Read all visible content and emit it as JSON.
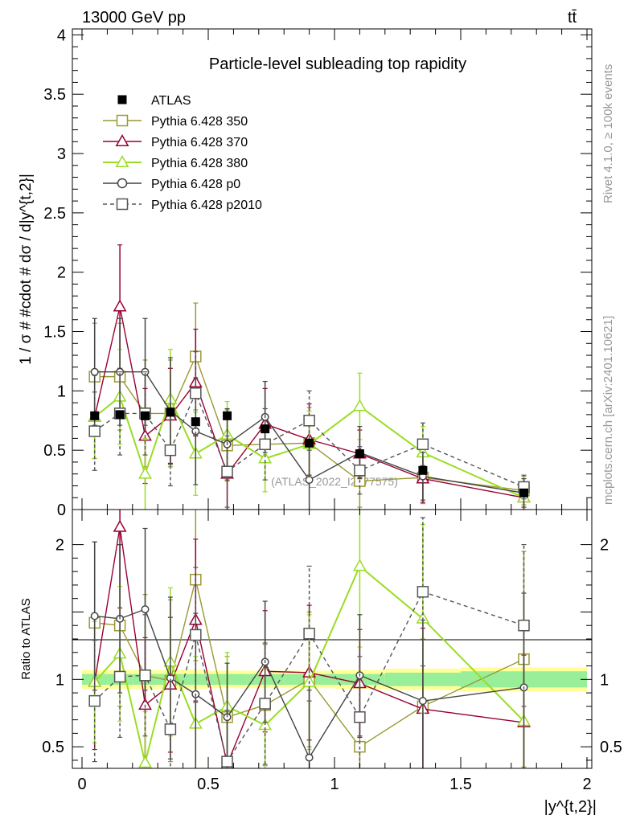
{
  "header": {
    "energy": "13000 GeV pp",
    "process": "tt̄"
  },
  "side_labels": {
    "rivet": "Rivet 4.1.0, ≥ 100k events",
    "mcplots": "mcplots.cern.ch [arXiv:2401.10621]"
  },
  "chart_data": [
    {
      "type": "scatter",
      "panel": "main",
      "title": "Particle-level subleading top rapidity",
      "ylabel": "1 / σ # #cdot # dσ / d|y^{t,2}|",
      "watermark": "(ATLAS_2022_I2077575)",
      "xlim": [
        0,
        2
      ],
      "ylim": [
        0,
        4.05
      ],
      "yticks": [
        "0",
        "0.5",
        "1",
        "1.5",
        "2",
        "2.5",
        "3",
        "3.5",
        "4"
      ],
      "x": [
        0.05,
        0.15,
        0.25,
        0.35,
        0.45,
        0.575,
        0.725,
        0.9,
        1.1,
        1.35,
        1.75
      ],
      "series": [
        {
          "name": "ATLAS",
          "color": "#000000",
          "marker": "filled-square",
          "values": [
            0.79,
            0.8,
            0.79,
            0.82,
            0.74,
            0.79,
            0.68,
            0.56,
            0.47,
            0.33,
            0.14
          ],
          "err": [
            0.03,
            0.03,
            0.03,
            0.03,
            0.03,
            0.03,
            0.03,
            0.03,
            0.03,
            0.03,
            0.02
          ]
        },
        {
          "name": "Pythia 6.428 350",
          "color": "#999933",
          "marker": "open-square",
          "values": [
            1.12,
            1.12,
            0.81,
            0.81,
            1.29,
            0.54,
            0.55,
            0.56,
            0.24,
            0.27,
            0.16
          ],
          "err": [
            0.45,
            0.45,
            0.45,
            0.45,
            0.45,
            0.3,
            0.3,
            0.3,
            0.22,
            0.22,
            0.12
          ]
        },
        {
          "name": "Pythia 6.428 370",
          "color": "#990033",
          "marker": "open-triangle",
          "values": [
            0.78,
            1.71,
            0.62,
            0.79,
            1.07,
            0.3,
            0.72,
            0.59,
            0.47,
            0.26,
            0.1
          ],
          "err": [
            0.35,
            0.52,
            0.4,
            0.4,
            0.45,
            0.3,
            0.3,
            0.3,
            0.2,
            0.2,
            0.1
          ]
        },
        {
          "name": "Pythia 6.428 380",
          "color": "#99dd22",
          "marker": "open-triangle",
          "values": [
            0.78,
            0.95,
            0.3,
            0.93,
            0.47,
            0.63,
            0.43,
            0.55,
            0.87,
            0.48,
            0.1
          ],
          "err": [
            0.35,
            0.4,
            0.3,
            0.42,
            0.35,
            0.28,
            0.28,
            0.28,
            0.28,
            0.22,
            0.08
          ]
        },
        {
          "name": "Pythia 6.428 p0",
          "color": "#444444",
          "marker": "open-circle",
          "values": [
            1.16,
            1.16,
            1.16,
            0.83,
            0.66,
            0.55,
            0.78,
            0.25,
            0.48,
            0.28,
            0.14
          ],
          "err": [
            0.45,
            0.45,
            0.45,
            0.45,
            0.45,
            0.3,
            0.3,
            0.3,
            0.22,
            0.2,
            0.12
          ]
        },
        {
          "name": "Pythia 6.428 p2010",
          "color": "#555555",
          "marker": "open-square",
          "dashed": true,
          "values": [
            0.66,
            0.81,
            0.81,
            0.5,
            0.98,
            0.32,
            0.55,
            0.75,
            0.33,
            0.55,
            0.19
          ],
          "err": [
            0.33,
            0.35,
            0.35,
            0.3,
            0.35,
            0.3,
            0.3,
            0.25,
            0.2,
            0.18,
            0.1
          ]
        }
      ]
    },
    {
      "type": "scatter",
      "panel": "ratio",
      "ylabel": "Ratio to ATLAS",
      "xlabel": "|y^{t,2}|",
      "xlim": [
        0,
        2
      ],
      "ylim": [
        0.34,
        2.26
      ],
      "xticks": [
        "0",
        "0.5",
        "1",
        "1.5",
        "2"
      ],
      "yticks": [
        "0.5",
        "1",
        "2"
      ],
      "band_edges": [
        0,
        0.1,
        0.2,
        0.3,
        0.4,
        0.5,
        0.65,
        0.8,
        1.0,
        1.2,
        1.5,
        2.0
      ],
      "band_inner": [
        0.04,
        0.04,
        0.04,
        0.04,
        0.04,
        0.04,
        0.04,
        0.04,
        0.04,
        0.05,
        0.06
      ],
      "band_outer": [
        0.07,
        0.07,
        0.07,
        0.07,
        0.07,
        0.065,
        0.065,
        0.065,
        0.07,
        0.08,
        0.09
      ],
      "series": [
        {
          "name": "Pythia 6.428 350",
          "color": "#999933",
          "marker": "open-square",
          "values": [
            1.42,
            1.4,
            1.03,
            0.99,
            1.74,
            0.72,
            0.81,
            1.0,
            0.5,
            0.8,
            1.15
          ],
          "err": [
            0.6,
            0.6,
            0.6,
            0.6,
            0.6,
            0.45,
            0.45,
            0.5,
            0.45,
            0.5,
            0.8
          ]
        },
        {
          "name": "Pythia 6.428 370",
          "color": "#990033",
          "marker": "open-triangle",
          "values": [
            0.98,
            2.13,
            0.81,
            0.96,
            1.44,
            0.37,
            1.06,
            1.05,
            0.97,
            0.78,
            0.68
          ],
          "err": [
            0.5,
            0.6,
            0.5,
            0.5,
            0.6,
            0.4,
            0.45,
            0.5,
            0.4,
            0.6,
            0.5
          ]
        },
        {
          "name": "Pythia 6.428 380",
          "color": "#99dd22",
          "marker": "open-triangle",
          "values": [
            0.98,
            1.19,
            0.38,
            1.13,
            0.67,
            0.8,
            0.66,
            0.98,
            1.84,
            1.45,
            0.69
          ],
          "err": [
            0.45,
            0.5,
            0.38,
            0.55,
            0.5,
            0.4,
            0.42,
            0.5,
            0.6,
            0.7,
            0.5
          ]
        },
        {
          "name": "Pythia 6.428 p0",
          "color": "#444444",
          "marker": "open-circle",
          "values": [
            1.47,
            1.45,
            1.52,
            1.01,
            0.89,
            0.72,
            1.13,
            0.42,
            1.03,
            0.84,
            0.94
          ],
          "err": [
            0.55,
            0.55,
            0.6,
            0.6,
            0.6,
            0.4,
            0.45,
            0.5,
            0.45,
            0.6,
            0.7
          ]
        },
        {
          "name": "Pythia 6.428 p2010",
          "color": "#555555",
          "marker": "open-square",
          "dashed": true,
          "values": [
            0.84,
            1.02,
            1.03,
            0.63,
            1.33,
            0.39,
            0.82,
            1.34,
            0.72,
            1.65,
            1.4
          ],
          "err": [
            0.45,
            0.45,
            0.45,
            0.4,
            0.5,
            0.38,
            0.45,
            0.5,
            0.45,
            0.55,
            0.6
          ]
        }
      ]
    }
  ]
}
